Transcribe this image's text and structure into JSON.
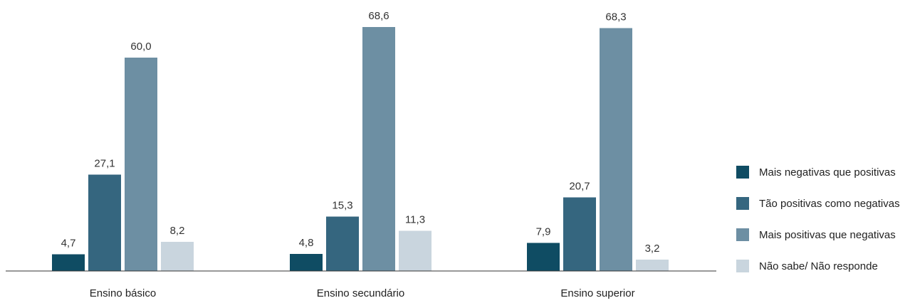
{
  "chart_data": {
    "type": "bar",
    "categories": [
      "Ensino básico",
      "Ensino secundário",
      "Ensino superior"
    ],
    "series": [
      {
        "name": "Mais negativas que positivas",
        "color": "#0f4c63",
        "values": [
          4.7,
          4.8,
          7.9
        ],
        "labels": [
          "4,7",
          "4,8",
          "7,9"
        ]
      },
      {
        "name": "Tão positivas como negativas",
        "color": "#35667f",
        "values": [
          27.1,
          15.3,
          20.7
        ],
        "labels": [
          "27,1",
          "15,3",
          "20,7"
        ]
      },
      {
        "name": "Mais positivas que negativas",
        "color": "#6d8fa3",
        "values": [
          60.0,
          68.6,
          68.3
        ],
        "labels": [
          "60,0",
          "68,6",
          "68,3"
        ]
      },
      {
        "name": "Não sabe/ Não responde",
        "color": "#c9d5de",
        "values": [
          8.2,
          11.3,
          3.2
        ],
        "labels": [
          "8,2",
          "11,3",
          "3,2"
        ]
      }
    ],
    "ylim": [
      0,
      70
    ],
    "grid": false,
    "legend_position": "right"
  }
}
